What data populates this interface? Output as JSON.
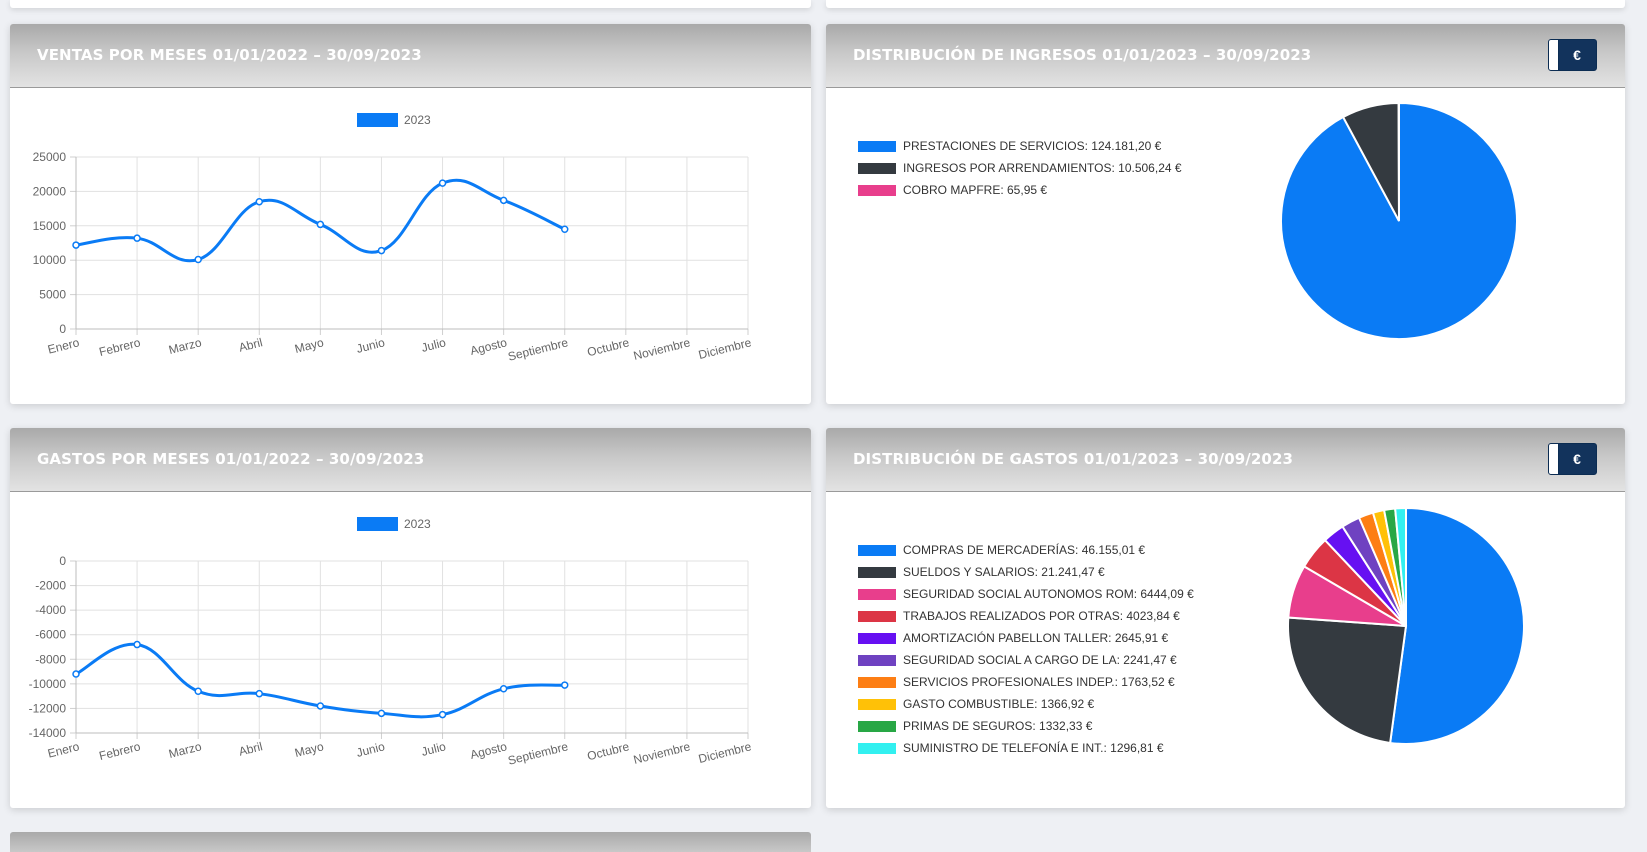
{
  "months": [
    "Enero",
    "Febrero",
    "Marzo",
    "Abril",
    "Mayo",
    "Junio",
    "Julio",
    "Agosto",
    "Septiembre",
    "Octubre",
    "Noviembre",
    "Diciembre"
  ],
  "currency_symbol": "€",
  "colors": {
    "primary": "#0a7bf5",
    "header_gradient": [
      "#a9a9a9",
      "#e3e3e3"
    ],
    "button": "#12335c"
  },
  "ventas": {
    "title": "VENTAS POR MESES 01/01/2022 – 30/09/2023",
    "legend_label": "2023",
    "chart_data": {
      "type": "line",
      "title": "VENTAS POR MESES 01/01/2022 – 30/09/2023",
      "categories": [
        "Enero",
        "Febrero",
        "Marzo",
        "Abril",
        "Mayo",
        "Junio",
        "Julio",
        "Agosto",
        "Septiembre",
        "Octubre",
        "Noviembre",
        "Diciembre"
      ],
      "series": [
        {
          "name": "2023",
          "color": "#0a7bf5",
          "values": [
            12200,
            13200,
            10100,
            18500,
            15200,
            11400,
            21200,
            18700,
            14500,
            null,
            null,
            null
          ]
        }
      ],
      "ylim": [
        0,
        25000
      ],
      "yticks": [
        0,
        5000,
        10000,
        15000,
        20000,
        25000
      ],
      "grid": true,
      "legend": "top-center"
    }
  },
  "gastos": {
    "title": "GASTOS POR MESES 01/01/2022 – 30/09/2023",
    "legend_label": "2023",
    "chart_data": {
      "type": "line",
      "title": "GASTOS POR MESES 01/01/2022 – 30/09/2023",
      "categories": [
        "Enero",
        "Febrero",
        "Marzo",
        "Abril",
        "Mayo",
        "Junio",
        "Julio",
        "Agosto",
        "Septiembre",
        "Octubre",
        "Noviembre",
        "Diciembre"
      ],
      "series": [
        {
          "name": "2023",
          "color": "#0a7bf5",
          "values": [
            -9200,
            -6800,
            -10600,
            -10800,
            -11800,
            -12400,
            -12500,
            -10400,
            -10100,
            null,
            null,
            null
          ]
        }
      ],
      "ylim": [
        -14000,
        0
      ],
      "yticks": [
        0,
        -2000,
        -4000,
        -6000,
        -8000,
        -10000,
        -12000,
        -14000
      ],
      "grid": true,
      "legend": "top-center"
    }
  },
  "ingresos": {
    "title": "DISTRIBUCIÓN DE INGRESOS 01/01/2023 – 30/09/2023",
    "chart_data": {
      "type": "pie",
      "title": "DISTRIBUCIÓN DE INGRESOS 01/01/2023 – 30/09/2023",
      "legend": "left",
      "slices": [
        {
          "label": "PRESTACIONES DE SERVICIOS: 124.181,20 €",
          "value": 124181.2,
          "color": "#0a7bf5"
        },
        {
          "label": "INGRESOS POR ARRENDAMIENTOS: 10.506,24 €",
          "value": 10506.24,
          "color": "#343a40"
        },
        {
          "label": "COBRO MAPFRE: 65,95 €",
          "value": 65.95,
          "color": "#e83e8c"
        }
      ]
    }
  },
  "gastos_dist": {
    "title": "DISTRIBUCIÓN DE GASTOS 01/01/2023 – 30/09/2023",
    "chart_data": {
      "type": "pie",
      "title": "DISTRIBUCIÓN DE GASTOS 01/01/2023 – 30/09/2023",
      "legend": "left",
      "slices": [
        {
          "label": "COMPRAS DE MERCADERÍAS: 46.155,01 €",
          "value": 46155.01,
          "color": "#0a7bf5"
        },
        {
          "label": "SUELDOS Y SALARIOS: 21.241,47 €",
          "value": 21241.47,
          "color": "#343a40"
        },
        {
          "label": "SEGURIDAD SOCIAL AUTONOMOS ROM: 6444,09 €",
          "value": 6444.09,
          "color": "#e83e8c"
        },
        {
          "label": "TRABAJOS REALIZADOS POR OTRAS: 4023,84 €",
          "value": 4023.84,
          "color": "#dc3545"
        },
        {
          "label": "AMORTIZACIÓN PABELLON TALLER: 2645,91 €",
          "value": 2645.91,
          "color": "#6610f2"
        },
        {
          "label": "SEGURIDAD SOCIAL A CARGO DE LA: 2241,47 €",
          "value": 2241.47,
          "color": "#6f42c1"
        },
        {
          "label": "SERVICIOS PROFESIONALES INDEP.: 1763,52 €",
          "value": 1763.52,
          "color": "#fd7e14"
        },
        {
          "label": "GASTO COMBUSTIBLE: 1366,92 €",
          "value": 1366.92,
          "color": "#ffc107"
        },
        {
          "label": "PRIMAS DE SEGUROS: 1332,33 €",
          "value": 1332.33,
          "color": "#28a745"
        },
        {
          "label": "SUMINISTRO DE TELEFONÍA E INT.: 1296,81 €",
          "value": 1296.81,
          "color": "#32f0f0"
        }
      ]
    }
  }
}
